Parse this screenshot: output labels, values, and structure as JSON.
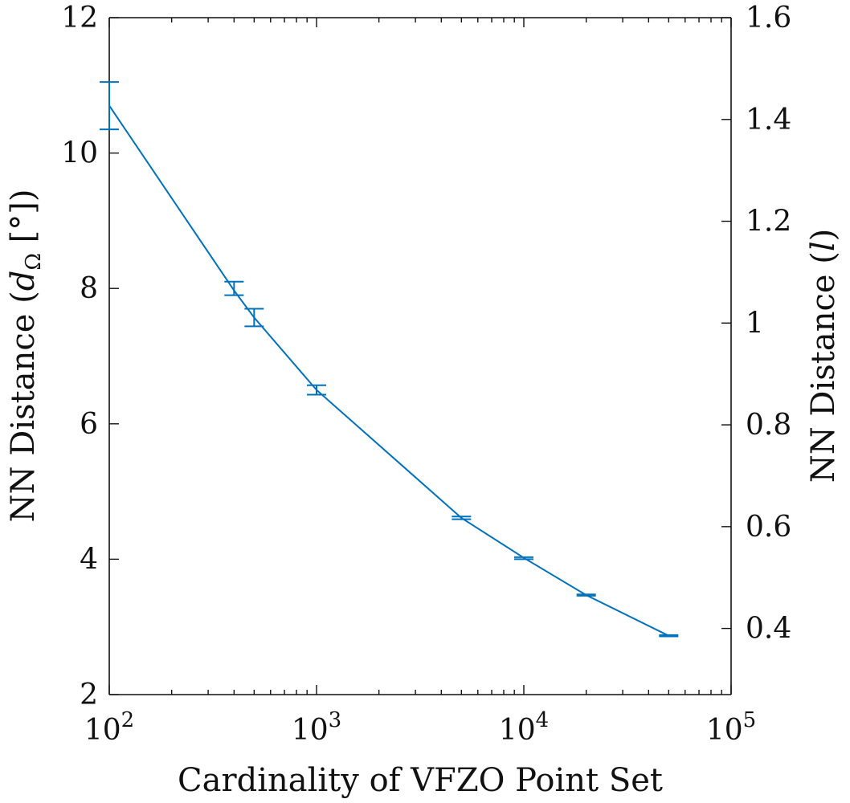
{
  "chart_data": {
    "type": "line",
    "xlabel": "Cardinality of VFZO Point Set",
    "ylabel_left": "NN Distance (dΩ [°])",
    "ylabel_left_parts": {
      "pre": "NN Distance (",
      "var": "d",
      "sub": "Ω",
      "post": " [°])"
    },
    "ylabel_right": "NN Distance (l)",
    "ylabel_right_parts": {
      "pre": "NN Distance (",
      "var": "l",
      "post": ")"
    },
    "x_scale": "log",
    "xlim": [
      100,
      100000
    ],
    "ylim_left": [
      2,
      12
    ],
    "ylim_right": [
      0.27,
      1.6
    ],
    "x_ticks": [
      {
        "value": 100,
        "base": "10",
        "exp": "2"
      },
      {
        "value": 1000,
        "base": "10",
        "exp": "3"
      },
      {
        "value": 10000,
        "base": "10",
        "exp": "4"
      },
      {
        "value": 100000,
        "base": "10",
        "exp": "5"
      }
    ],
    "y_left_ticks": [
      {
        "value": 2,
        "label": "2"
      },
      {
        "value": 4,
        "label": "4"
      },
      {
        "value": 6,
        "label": "6"
      },
      {
        "value": 8,
        "label": "8"
      },
      {
        "value": 10,
        "label": "10"
      },
      {
        "value": 12,
        "label": "12"
      }
    ],
    "y_right_ticks": [
      {
        "value": 0.4,
        "label": "0.4"
      },
      {
        "value": 0.6,
        "label": "0.6"
      },
      {
        "value": 0.8,
        "label": "0.8"
      },
      {
        "value": 1.0,
        "label": "1"
      },
      {
        "value": 1.2,
        "label": "1.2"
      },
      {
        "value": 1.4,
        "label": "1.4"
      },
      {
        "value": 1.6,
        "label": "1.6"
      }
    ],
    "grid": false,
    "series": [
      {
        "color": "#0072bd",
        "x": [
          100,
          400,
          500,
          1000,
          5000,
          10000,
          20000,
          50000
        ],
        "y": [
          10.7,
          7.97,
          7.57,
          6.5,
          4.61,
          4.02,
          3.47,
          2.87
        ],
        "err_low": [
          10.35,
          7.9,
          7.44,
          6.43,
          4.59,
          4.0,
          3.46,
          2.86
        ],
        "err_high": [
          11.05,
          8.1,
          7.7,
          6.57,
          4.63,
          4.03,
          3.48,
          2.88
        ]
      }
    ]
  }
}
